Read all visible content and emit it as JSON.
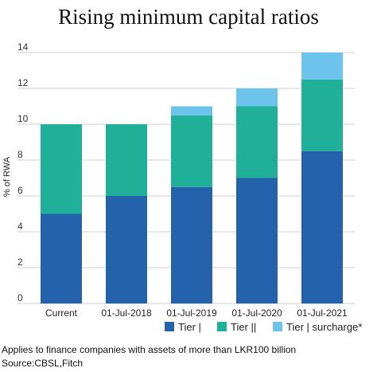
{
  "chart_data": {
    "type": "bar",
    "stacked": true,
    "title": "Rising minimum capital ratios",
    "ylabel": "% of RWA",
    "xlabel": "",
    "ylim": [
      0,
      14
    ],
    "yticks": [
      0,
      2,
      4,
      6,
      8,
      10,
      12,
      14
    ],
    "grid": true,
    "legend_position": "bottom",
    "categories": [
      "Current",
      "01-Jul-2018",
      "01-Jul-2019",
      "01-Jul-2020",
      "01-Jul-2021"
    ],
    "series": [
      {
        "name": "Tier |",
        "color": "#2462ac",
        "values": [
          5,
          6,
          6.5,
          7,
          8.5
        ]
      },
      {
        "name": "Tier ||",
        "color": "#20b09a",
        "values": [
          5,
          4,
          4,
          4,
          4
        ]
      },
      {
        "name": "Tier | surcharge*",
        "color": "#6cc3ec",
        "values": [
          0,
          0,
          0.5,
          1,
          1.5
        ]
      }
    ]
  },
  "footnote": "Applies to finance companies with assets of more than LKR100 billion",
  "source": "Source:CBSL,Fitch"
}
